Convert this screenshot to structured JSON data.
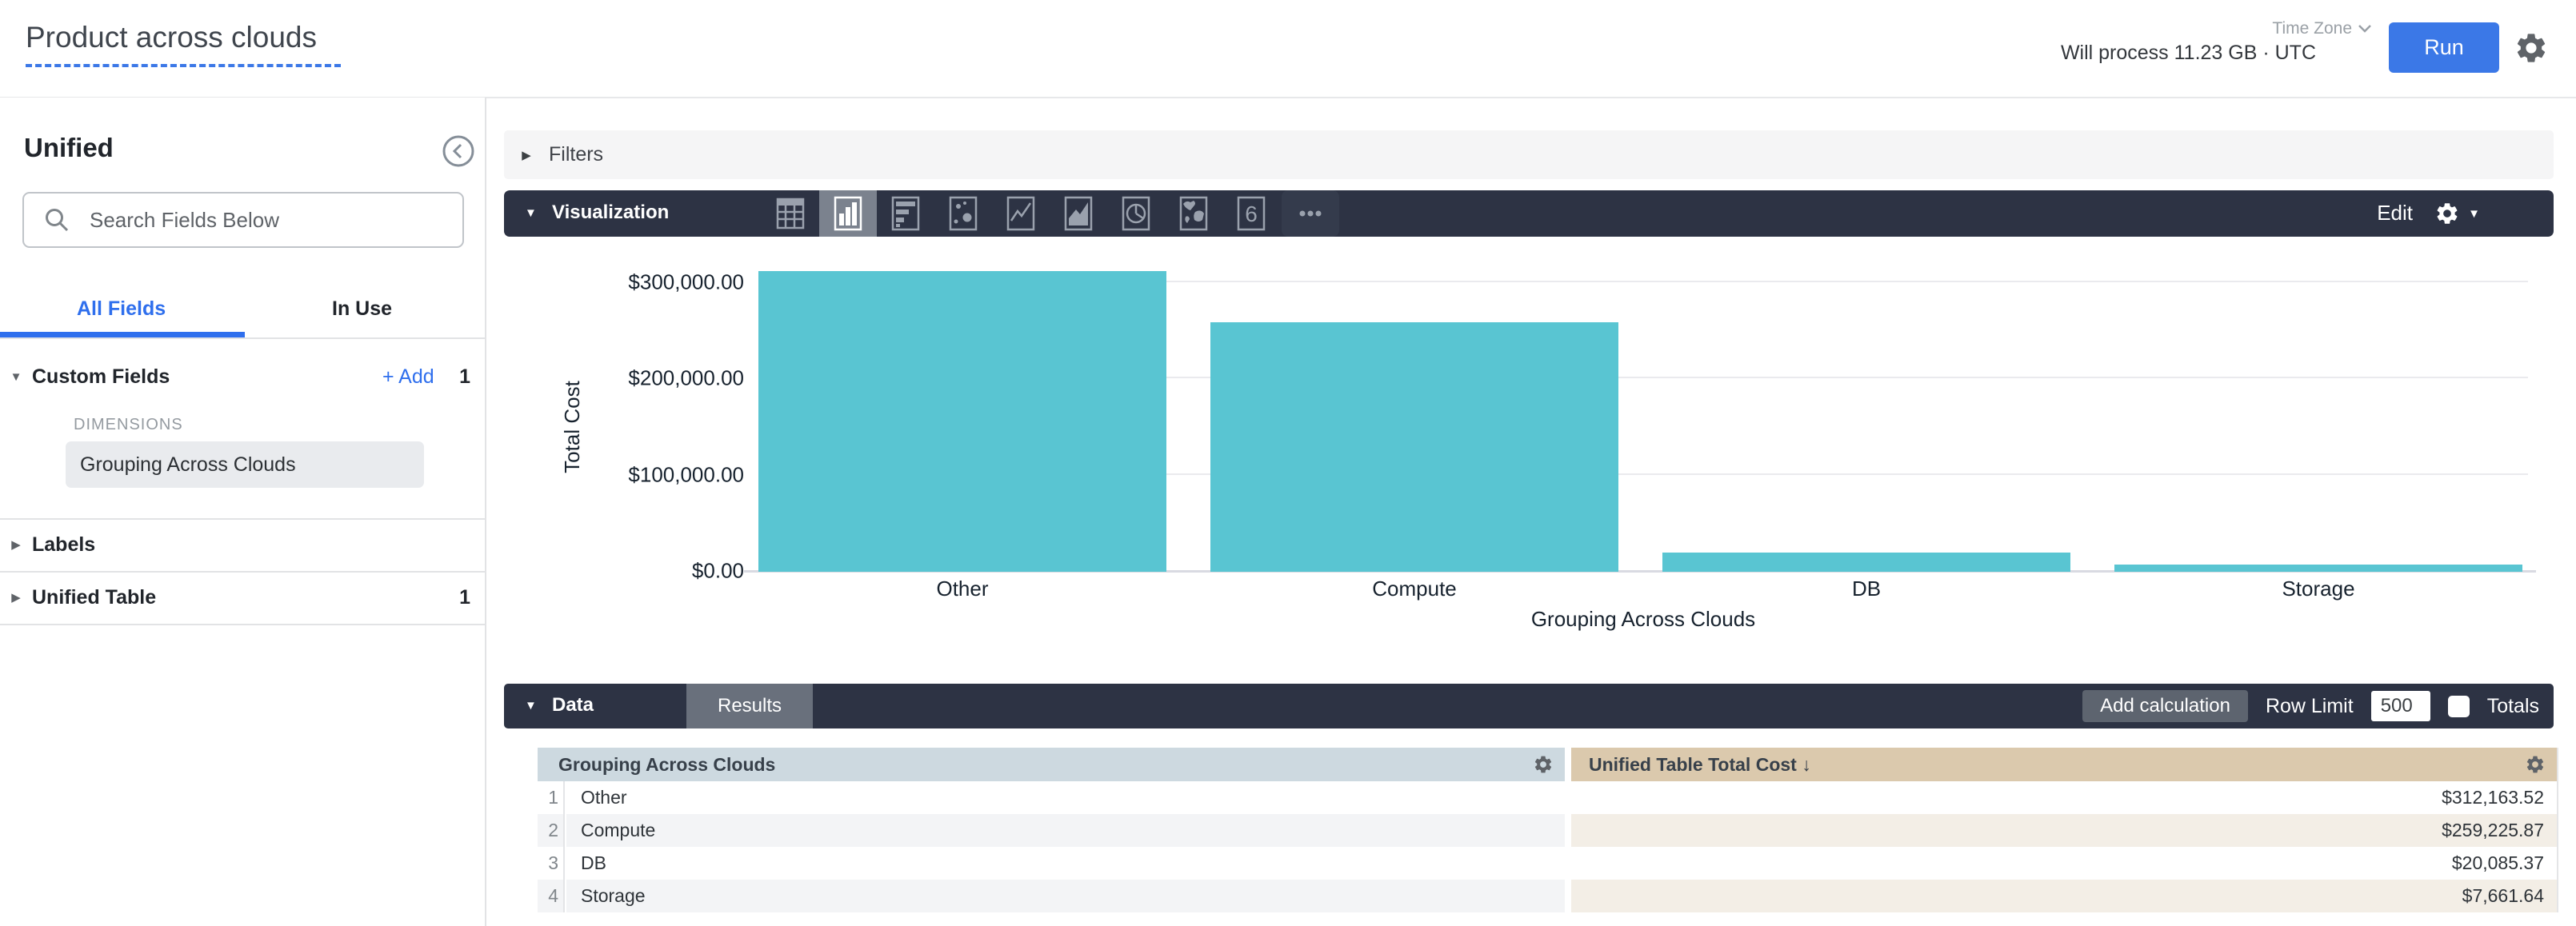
{
  "header": {
    "title": "Product across clouds",
    "process_note": "Will process 11.23 GB · UTC",
    "time_zone_label": "Time Zone",
    "run_label": "Run"
  },
  "sidebar": {
    "view_title": "Unified",
    "search_placeholder": "Search Fields Below",
    "tabs": {
      "all_fields": "All Fields",
      "in_use": "In Use"
    },
    "custom_fields": {
      "label": "Custom Fields",
      "add_label": "+ Add",
      "count": "1",
      "dimensions_label": "DIMENSIONS",
      "field": "Grouping Across Clouds"
    },
    "labels_section": {
      "label": "Labels"
    },
    "unified_table_section": {
      "label": "Unified Table",
      "count": "1"
    }
  },
  "filters": {
    "label": "Filters"
  },
  "visualization": {
    "label": "Visualization",
    "edit_label": "Edit",
    "icons": [
      "table-icon",
      "column-chart-icon",
      "bar-chart-icon",
      "scatter-chart-icon",
      "line-chart-icon",
      "area-chart-icon",
      "pie-chart-icon",
      "map-chart-icon",
      "single-value-icon",
      "more-icon"
    ],
    "selected_icon": "column-chart-icon",
    "single_value_glyph": "6"
  },
  "chart_data": {
    "type": "bar",
    "categories": [
      "Other",
      "Compute",
      "DB",
      "Storage"
    ],
    "values": [
      312163.52,
      259225.87,
      20085.37,
      7661.64
    ],
    "title": "",
    "xlabel": "Grouping Across Clouds",
    "ylabel": "Total Cost",
    "ylim": [
      0,
      310000
    ],
    "ytick_values": [
      0,
      100000,
      200000,
      300000
    ],
    "ytick_labels": [
      "$0.00",
      "$100,000.00",
      "$200,000.00",
      "$300,000.00"
    ],
    "grid": "horizontal",
    "legend": "none",
    "bar_color": "#59c5d2"
  },
  "data_section": {
    "data_label": "Data",
    "results_label": "Results",
    "add_calculation_label": "Add calculation",
    "row_limit_label": "Row Limit",
    "row_limit_value": "500",
    "totals_label": "Totals",
    "totals_checked": false
  },
  "table": {
    "columns": [
      {
        "label": "Grouping Across Clouds"
      },
      {
        "label": "Unified Table Total Cost ↓"
      }
    ],
    "rows": [
      {
        "num": "1",
        "dimension": "Other",
        "value": "$312,163.52"
      },
      {
        "num": "2",
        "dimension": "Compute",
        "value": "$259,225.87"
      },
      {
        "num": "3",
        "dimension": "DB",
        "value": "$20,085.37"
      },
      {
        "num": "4",
        "dimension": "Storage",
        "value": "$7,661.64"
      }
    ]
  },
  "colors": {
    "accent_blue": "#2f6fed",
    "run_blue": "#3b78e7",
    "bar_teal": "#59c5d2",
    "toolbar_dark": "#2d3344",
    "dimension_header_bg": "#cdd9e0",
    "measure_header_bg": "#dbc9ad"
  }
}
